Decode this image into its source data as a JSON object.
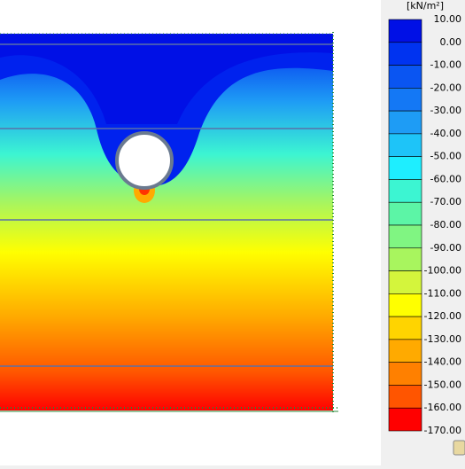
{
  "legend": {
    "unit": "[kN/m²]",
    "labels": [
      "10.00",
      "0.00",
      "-10.00",
      "-20.00",
      "-30.00",
      "-40.00",
      "-50.00",
      "-60.00",
      "-70.00",
      "-80.00",
      "-90.00",
      "-100.00",
      "-110.00",
      "-120.00",
      "-130.00",
      "-140.00",
      "-150.00",
      "-160.00",
      "-170.00"
    ],
    "colors": [
      "#0010e6",
      "#0033f0",
      "#0a55f2",
      "#1478f5",
      "#1e9cf5",
      "#1ec4f8",
      "#1eeeff",
      "#3cf5d2",
      "#5cf5a6",
      "#80f582",
      "#a8f55e",
      "#d4f53c",
      "#ffff00",
      "#ffd400",
      "#ffaa00",
      "#ff8000",
      "#ff5500",
      "#ff0000"
    ]
  }
}
